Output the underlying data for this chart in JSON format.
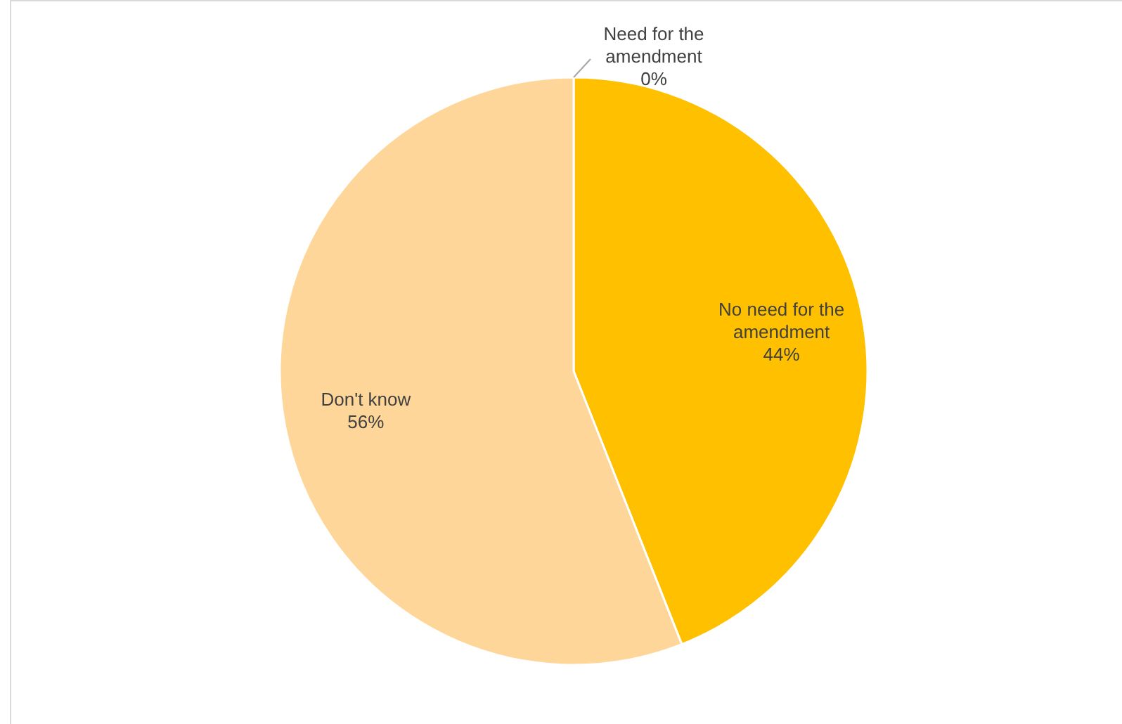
{
  "chart_data": {
    "type": "pie",
    "categories": [
      "Need for the amendment",
      "No need for the amendment",
      "Don't know"
    ],
    "values": [
      0,
      44,
      56
    ],
    "colors": [
      "#bf9000",
      "#ffc000",
      "#ffd699"
    ],
    "value_labels": [
      "0%",
      "44%",
      "56%"
    ]
  }
}
